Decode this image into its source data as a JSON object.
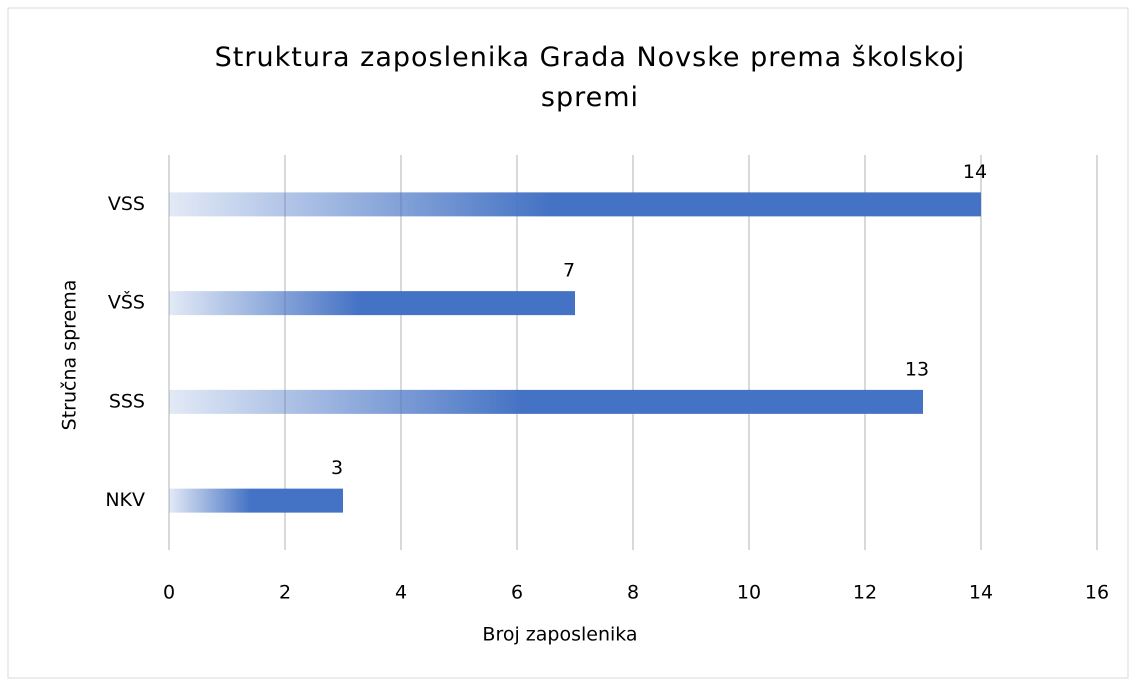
{
  "chart_data": {
    "type": "hbar",
    "title": "Struktura zaposlenika Grada Novske prema školskoj spremi",
    "categories": [
      "VSS",
      "VŠS",
      "SSS",
      "NKV"
    ],
    "values": [
      14,
      7,
      13,
      3
    ],
    "color": "#4472c4",
    "xlabel": "Broj zaposlenika",
    "ylabel": "Stručna sprema",
    "xlim": [
      0,
      16
    ],
    "xticks": [
      0,
      2,
      4,
      6,
      8,
      10,
      12,
      14,
      16
    ],
    "grid": true
  }
}
